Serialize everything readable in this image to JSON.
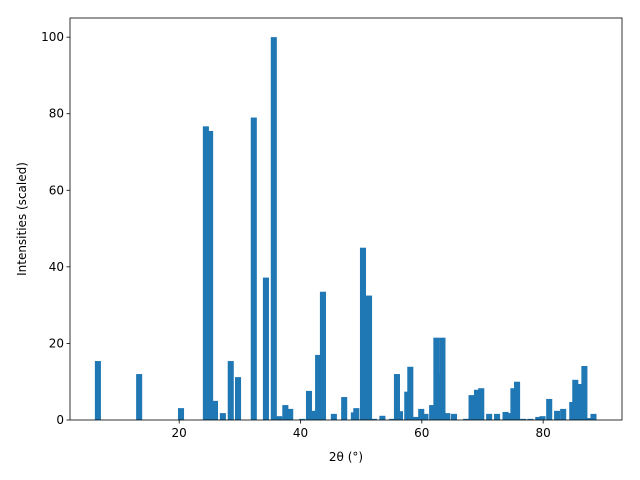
{
  "chart_data": {
    "type": "bar",
    "x_label": "2θ (°)",
    "y_label": "Intensities (scaled)",
    "color": "#1f77b4",
    "x": [
      6.6,
      13.4,
      20.3,
      24.4,
      25.1,
      25.9,
      27.2,
      28.5,
      29.7,
      32.3,
      34.3,
      35.6,
      36.5,
      37.5,
      38.3,
      40.3,
      41.4,
      42.2,
      42.9,
      43.7,
      45.5,
      47.2,
      48.8,
      49.2,
      50.3,
      51.3,
      52.1,
      53.5,
      55.1,
      55.9,
      56.4,
      57.6,
      58.1,
      58.7,
      59.4,
      59.9,
      60.6,
      61.7,
      62.4,
      62.9,
      63.4,
      64.2,
      65.3,
      67.3,
      68.2,
      69.1,
      69.8,
      71.1,
      72.4,
      73.8,
      74.3,
      75.1,
      75.7,
      76.7,
      77.9,
      79.2,
      79.9,
      81.0,
      82.3,
      83.3,
      84.8,
      85.3,
      86.0,
      86.8,
      87.6,
      88.3
    ],
    "values": [
      15.4,
      12.0,
      3.1,
      76.7,
      75.5,
      5.0,
      1.8,
      15.4,
      11.2,
      79.0,
      37.2,
      100,
      1.0,
      3.9,
      2.9,
      0.3,
      7.6,
      2.4,
      17.0,
      33.5,
      1.6,
      6.0,
      2.0,
      3.1,
      45.0,
      32.5,
      0.3,
      1.1,
      0.3,
      12.0,
      2.3,
      7.4,
      13.9,
      0.8,
      0.8,
      2.9,
      1.6,
      3.9,
      21.5,
      12.0,
      21.5,
      1.8,
      1.6,
      0.3,
      6.5,
      7.9,
      8.3,
      1.6,
      1.6,
      2.1,
      1.8,
      8.3,
      10.0,
      0.3,
      0.3,
      0.8,
      1.0,
      5.5,
      2.4,
      2.9,
      4.7,
      10.5,
      9.4,
      14.1,
      0.5,
      1.6
    ],
    "xlim": [
      2.0,
      93.0
    ],
    "ylim": [
      0,
      105
    ],
    "xticks": [
      20,
      40,
      60,
      80
    ],
    "yticks": [
      0,
      20,
      40,
      60,
      80,
      100
    ]
  }
}
